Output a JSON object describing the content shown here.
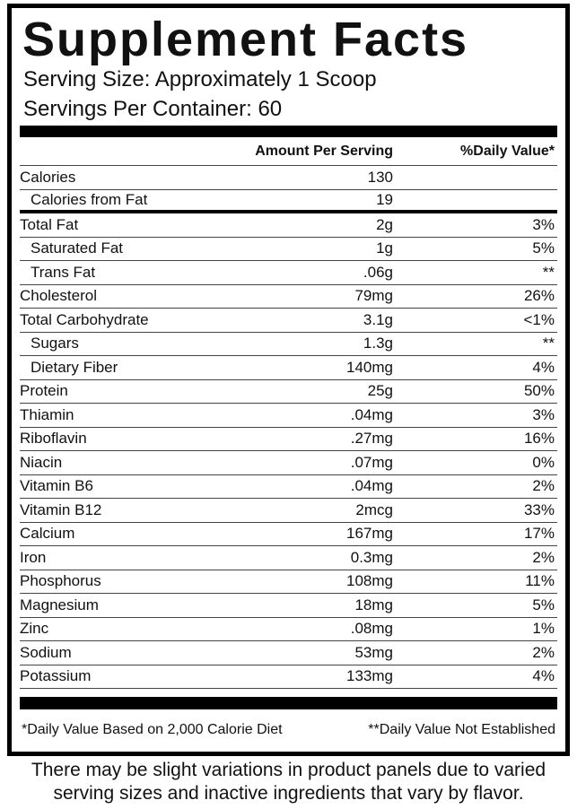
{
  "title": "Supplement Facts",
  "serving_size": "Serving Size: Approximately 1 Scoop",
  "servings_per_container": "Servings Per Container: 60",
  "header": {
    "amount": "Amount Per Serving",
    "dv": "%Daily Value*"
  },
  "sections": [
    [
      {
        "name": "Calories",
        "amount": "130",
        "sub": [
          {
            "name": "Calories from Fat",
            "amount": "19"
          }
        ]
      }
    ],
    [
      {
        "name": "Total Fat",
        "amount": "2g",
        "dv": "3%",
        "sub": [
          {
            "name": "Saturated Fat",
            "amount": "1g",
            "dv": "5%"
          },
          {
            "name": "Trans Fat",
            "amount": ".06g",
            "dv": "**"
          }
        ]
      },
      {
        "name": "Cholesterol",
        "amount": "79mg",
        "dv": "26%"
      },
      {
        "name": "Total Carbohydrate",
        "amount": "3.1g",
        "dv": "<1%",
        "sub": [
          {
            "name": "Sugars",
            "amount": "1.3g",
            "dv": "**"
          },
          {
            "name": "Dietary Fiber",
            "amount": "140mg",
            "dv": "4%"
          }
        ]
      },
      {
        "name": "Protein",
        "amount": "25g",
        "dv": "50%"
      },
      {
        "name": "Thiamin",
        "amount": ".04mg",
        "dv": "3%"
      },
      {
        "name": "Riboflavin",
        "amount": ".27mg",
        "dv": "16%"
      },
      {
        "name": "Niacin",
        "amount": ".07mg",
        "dv": "0%"
      },
      {
        "name": "Vitamin B6",
        "amount": ".04mg",
        "dv": "2%"
      },
      {
        "name": "Vitamin B12",
        "amount": "2mcg",
        "dv": "33%"
      },
      {
        "name": "Calcium",
        "amount": "167mg",
        "dv": "17%"
      },
      {
        "name": "Iron",
        "amount": "0.3mg",
        "dv": "2%"
      },
      {
        "name": "Phosphorus",
        "amount": "108mg",
        "dv": "11%"
      },
      {
        "name": "Magnesium",
        "amount": "18mg",
        "dv": "5%"
      },
      {
        "name": "Zinc",
        "amount": ".08mg",
        "dv": "1%"
      },
      {
        "name": "Sodium",
        "amount": "53mg",
        "dv": "2%"
      },
      {
        "name": "Potassium",
        "amount": "133mg",
        "dv": "4%"
      }
    ]
  ],
  "footnotes": [
    "*Daily Value Based on 2,000 Calorie Diet",
    "**Daily Value Not Established"
  ],
  "caption": "There may be slight variations in product panels due to varied serving sizes and inactive ingredients that vary by flavor."
}
